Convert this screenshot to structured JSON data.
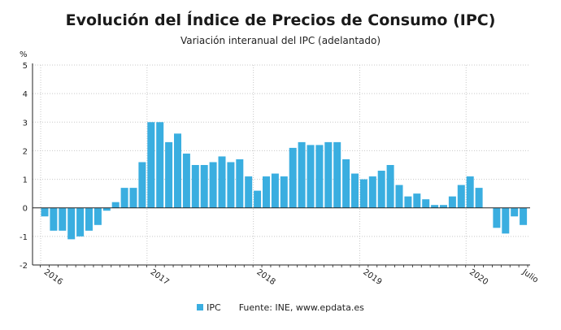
{
  "chart_data": {
    "type": "bar",
    "title": "Evolución del Índice de Precios de Consumo (IPC)",
    "subtitle": "Variación interanual del IPC (adelantado)",
    "ylabel": "%",
    "ylim": [
      -2,
      5
    ],
    "yticks": [
      -2,
      -1,
      0,
      1,
      2,
      3,
      4,
      5
    ],
    "grid": true,
    "legend_position": "bottom",
    "source": "Fuente: INE, www.epdata.es",
    "x_ticks": [
      {
        "label": "2016",
        "index": 0
      },
      {
        "label": "2017",
        "index": 12
      },
      {
        "label": "2018",
        "index": 24
      },
      {
        "label": "2019",
        "index": 36
      },
      {
        "label": "2020",
        "index": 48
      },
      {
        "label": "Julio",
        "index": 54
      }
    ],
    "categories": [
      "2016-01",
      "2016-02",
      "2016-03",
      "2016-04",
      "2016-05",
      "2016-06",
      "2016-07",
      "2016-08",
      "2016-09",
      "2016-10",
      "2016-11",
      "2016-12",
      "2017-01",
      "2017-02",
      "2017-03",
      "2017-04",
      "2017-05",
      "2017-06",
      "2017-07",
      "2017-08",
      "2017-09",
      "2017-10",
      "2017-11",
      "2017-12",
      "2018-01",
      "2018-02",
      "2018-03",
      "2018-04",
      "2018-05",
      "2018-06",
      "2018-07",
      "2018-08",
      "2018-09",
      "2018-10",
      "2018-11",
      "2018-12",
      "2019-01",
      "2019-02",
      "2019-03",
      "2019-04",
      "2019-05",
      "2019-06",
      "2019-07",
      "2019-08",
      "2019-09",
      "2019-10",
      "2019-11",
      "2019-12",
      "2020-01",
      "2020-02",
      "2020-03",
      "2020-04",
      "2020-05",
      "2020-06",
      "2020-07"
    ],
    "series": [
      {
        "name": "IPC",
        "color": "#3aaee0",
        "values": [
          -0.3,
          -0.8,
          -0.8,
          -1.1,
          -1.0,
          -0.8,
          -0.6,
          -0.1,
          0.2,
          0.7,
          0.7,
          1.6,
          3.0,
          3.0,
          2.3,
          2.6,
          1.9,
          1.5,
          1.5,
          1.6,
          1.8,
          1.6,
          1.7,
          1.1,
          0.6,
          1.1,
          1.2,
          1.1,
          2.1,
          2.3,
          2.2,
          2.2,
          2.3,
          2.3,
          1.7,
          1.2,
          1.0,
          1.1,
          1.3,
          1.5,
          0.8,
          0.4,
          0.5,
          0.3,
          0.1,
          0.1,
          0.4,
          0.8,
          1.1,
          0.7,
          0.0,
          -0.7,
          -0.9,
          -0.3,
          -0.6
        ]
      }
    ]
  }
}
